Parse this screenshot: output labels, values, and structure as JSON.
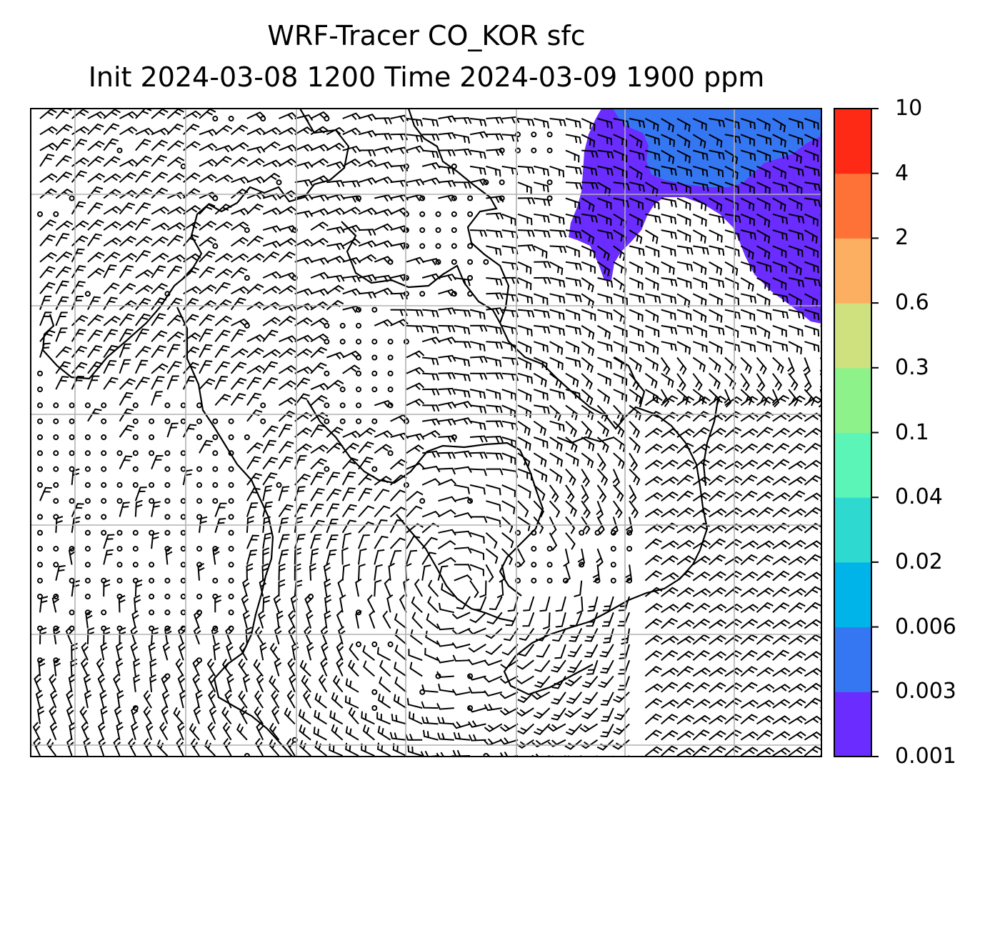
{
  "title": {
    "line1": "WRF-Tracer CO_KOR sfc",
    "line2": "Init 2024-03-08 1200 Time 2024-03-09 1900 ppm"
  },
  "map": {
    "grid_lines": true,
    "wind_barbs": true,
    "coastlines": true,
    "shaded_field_location": "top-right"
  },
  "colorbar": {
    "tick_labels": [
      "0.001",
      "0.003",
      "0.006",
      "0.02",
      "0.04",
      "0.1",
      "0.3",
      "0.6",
      "2",
      "4",
      "10"
    ],
    "colors": [
      "#6a2cff",
      "#3577f2",
      "#00b3e8",
      "#2ed9d0",
      "#5cf5b8",
      "#8ef28a",
      "#cfe07e",
      "#fcae61",
      "#ff7237",
      "#ff2a16"
    ]
  }
}
